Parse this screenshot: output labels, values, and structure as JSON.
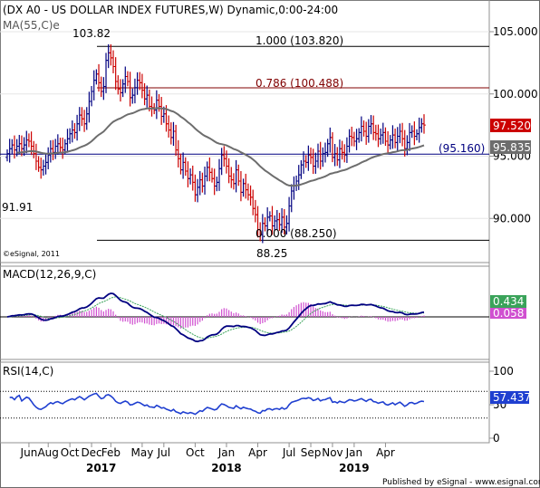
{
  "header": {
    "title": "(DX A0 - US DOLLAR INDEX FUTURES,W) Dynamic,0:00-24:00",
    "ma_label": "MA(55,C)e",
    "watermark": "©eSignal, 2011",
    "footer": "Published by eSignal - www.esignal.com"
  },
  "chart_data": [
    {
      "type": "candlestick",
      "panel": "price",
      "ylim": [
        86.6,
        107.4
      ],
      "y_ticks": [
        "105.000",
        "100.000",
        "95.000",
        "90.000"
      ],
      "y_tick_values": [
        105,
        100,
        95,
        90
      ],
      "ohlc_weekly": [],
      "close_weekly": [
        95.2,
        95.6,
        95.9,
        95.5,
        95.8,
        96.0,
        95.6,
        95.9,
        96.3,
        96.2,
        95.8,
        95.2,
        94.6,
        94.1,
        93.9,
        94.2,
        94.5,
        95.1,
        95.6,
        95.3,
        95.8,
        96.0,
        95.7,
        95.5,
        96.0,
        96.4,
        96.8,
        97.1,
        96.9,
        97.6,
        98.3,
        98.0,
        97.6,
        98.4,
        99.4,
        100.2,
        101.1,
        101.6,
        100.9,
        100.2,
        100.6,
        102.7,
        103.3,
        102.9,
        102.2,
        101.0,
        100.4,
        100.1,
        100.8,
        101.4,
        101.0,
        99.7,
        99.9,
        100.5,
        101.1,
        100.9,
        100.3,
        99.6,
        99.9,
        99.0,
        98.9,
        98.7,
        99.5,
        99.0,
        98.2,
        98.4,
        97.6,
        97.1,
        96.5,
        97.0,
        95.5,
        94.8,
        93.9,
        94.5,
        93.8,
        93.2,
        93.5,
        92.9,
        91.9,
        92.5,
        93.1,
        92.6,
        93.4,
        94.1,
        93.7,
        93.2,
        92.6,
        92.9,
        94.0,
        95.1,
        94.8,
        94.2,
        93.4,
        93.1,
        92.8,
        93.9,
        93.0,
        92.1,
        92.8,
        92.3,
        91.9,
        91.7,
        90.8,
        90.3,
        89.1,
        88.7,
        89.6,
        89.4,
        90.1,
        90.2,
        89.4,
        89.8,
        89.9,
        89.5,
        90.1,
        89.3,
        89.6,
        91.0,
        92.2,
        92.6,
        93.0,
        93.5,
        94.3,
        94.6,
        94.5,
        95.1,
        94.9,
        94.2,
        94.6,
        95.4,
        94.6,
        95.2,
        95.3,
        96.0,
        96.5,
        94.9,
        95.2,
        94.7,
        95.6,
        95.3,
        95.1,
        95.8,
        96.6,
        96.5,
        96.2,
        96.4,
        96.9,
        97.4,
        97.0,
        96.6,
        97.4,
        97.6,
        96.9,
        96.8,
        96.4,
        96.7,
        96.9,
        96.2,
        95.9,
        96.3,
        96.7,
        96.1,
        96.6,
        97.0,
        96.4,
        95.6,
        96.1,
        96.9,
        97.0,
        96.6,
        96.8,
        97.3,
        97.6,
        97.5
      ],
      "ma55": {
        "label": "MA(55,C)e",
        "last_value": "95.835"
      },
      "last_price_label": "97.520",
      "fib_levels": [
        {
          "label": "1.000 (103.820)",
          "value": 103.82
        },
        {
          "label": "0.786 (100.488)",
          "value": 100.488
        },
        {
          "label": "0.000 (88.250)",
          "value": 88.25
        }
      ],
      "support_line": {
        "label": "(95.160)",
        "value": 95.16
      },
      "annotations": [
        {
          "text": "103.82",
          "value": 103.82
        },
        {
          "text": "91.91",
          "value": 91.91
        },
        {
          "text": "88.25",
          "value": 88.25
        }
      ]
    },
    {
      "type": "line",
      "panel": "macd",
      "title": "MACD(12,26,9,C)",
      "ylim": [
        -3.0,
        3.6
      ],
      "values_label": "0.434",
      "signal_label": "0.058",
      "colors": {
        "macd": "#000080",
        "signal": "#3aa35a",
        "histogram": "#d050d0"
      }
    },
    {
      "type": "line",
      "panel": "rsi",
      "title": "RSI(14,C)",
      "ylim": [
        0,
        100
      ],
      "y_ticks": [
        "100",
        "50",
        "0"
      ],
      "y_tick_values": [
        100,
        50,
        0
      ],
      "levels": [
        70,
        30
      ],
      "value_label": "57.437",
      "color": "#1f3fd0"
    }
  ],
  "x_axis": {
    "months": [
      "Jun",
      "Aug",
      "Oct",
      "Dec",
      "Feb",
      "May",
      "Jul",
      "Oct",
      "Jan",
      "Apr",
      "Jul",
      "Sep",
      "Nov",
      "Jan",
      "Apr"
    ],
    "month_week_index": [
      9,
      17,
      26,
      35,
      43,
      56,
      65,
      78,
      91,
      104,
      117,
      126,
      135,
      144,
      157
    ],
    "years": [
      "2017",
      "2018",
      "2019"
    ],
    "year_week_index": [
      39,
      91,
      144
    ]
  },
  "colors": {
    "up": "#000080",
    "down": "#cc0000",
    "ma": "#6d6d6d",
    "fib_top": "#000000",
    "fib_mid": "#800000",
    "support": "#000080",
    "last_price_bg": "#cc0000"
  }
}
